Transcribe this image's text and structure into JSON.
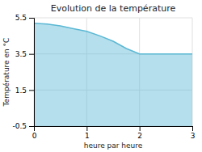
{
  "chart_data": {
    "type": "area",
    "title": "Evolution de la température",
    "xlabel": "heure par heure",
    "ylabel": "Température en °C",
    "x": [
      0,
      0.25,
      0.5,
      0.75,
      1.0,
      1.25,
      1.5,
      1.75,
      2.0,
      2.5,
      3.0
    ],
    "values": [
      5.2,
      5.15,
      5.05,
      4.9,
      4.75,
      4.5,
      4.2,
      3.8,
      3.5,
      3.5,
      3.5
    ],
    "color": "#5bb8d4",
    "xlim": [
      0,
      3
    ],
    "ylim": [
      -0.5,
      5.5
    ],
    "xticks": [
      0,
      1,
      2,
      3
    ],
    "yticks": [
      -0.5,
      1.5,
      3.5,
      5.5
    ],
    "grid": true
  }
}
